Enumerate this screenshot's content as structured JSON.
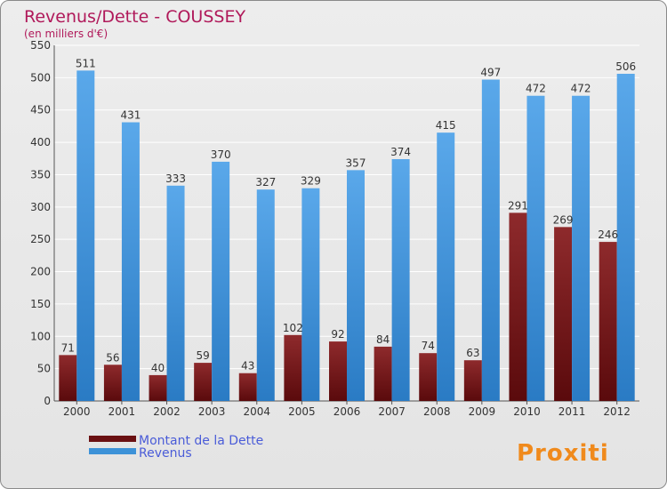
{
  "chart_data": {
    "type": "bar",
    "title": "Revenus/Dette - COUSSEY",
    "subtitle": "(en milliers d'€)",
    "xlabel": "",
    "ylabel": "",
    "ylim": [
      0,
      550
    ],
    "yticks": [
      0,
      50,
      100,
      150,
      200,
      250,
      300,
      350,
      400,
      450,
      500,
      550
    ],
    "grid": true,
    "legend_position": "bottom-left",
    "categories": [
      "2000",
      "2001",
      "2002",
      "2003",
      "2004",
      "2005",
      "2006",
      "2007",
      "2008",
      "2009",
      "2010",
      "2011",
      "2012"
    ],
    "series": [
      {
        "name": "Montant de la Dette",
        "color": "#7a1a1c",
        "values": [
          71,
          56,
          40,
          59,
          43,
          102,
          92,
          84,
          74,
          63,
          291,
          269,
          246
        ]
      },
      {
        "name": "Revenus",
        "color": "#3d92d8",
        "values": [
          511,
          431,
          333,
          370,
          327,
          329,
          357,
          374,
          415,
          497,
          472,
          472,
          506
        ]
      }
    ]
  },
  "colors": {
    "title": "#b0195a",
    "legend_text": "#4a5cd8",
    "grid": "#ffffff",
    "axis_text": "#333333"
  },
  "logo": {
    "text": "Proxiti"
  }
}
